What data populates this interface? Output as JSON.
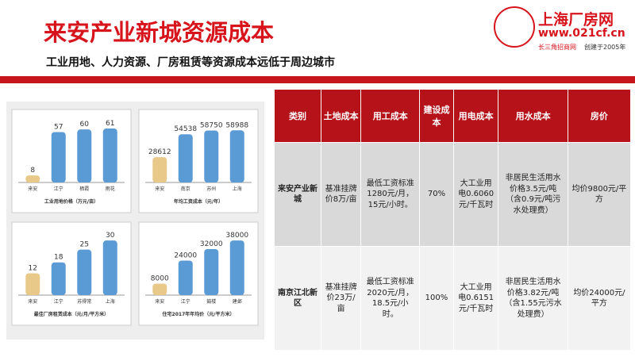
{
  "header": {
    "title": "来安产业新城资源成本",
    "subtitle": "工业用地、人力资源、厂房租赁等资源成本远低于周边城市",
    "logo": {
      "name": "上海厂房网",
      "url": "www.021cf.cn",
      "tagline": "长三角招商网",
      "founded": "创建于2005年"
    }
  },
  "charts": [
    {
      "type": "bar",
      "caption": "工业用地价格（万元/亩）",
      "categories": [
        "来安",
        "江宁",
        "栖霞",
        "雨花"
      ],
      "values": [
        8,
        57,
        60,
        61
      ],
      "ylim": [
        0,
        70
      ],
      "color": "#5b9bd5",
      "highlight_color": "#e8c98a"
    },
    {
      "type": "bar",
      "caption": "年均工资成本（元/年）",
      "categories": [
        "来安",
        "南京",
        "苏州",
        "上海"
      ],
      "values": [
        28612,
        54538,
        58750,
        58988
      ],
      "ylim": [
        0,
        70000
      ],
      "color": "#5b9bd5",
      "highlight_color": "#e8c98a"
    },
    {
      "type": "bar",
      "caption": "最佳厂房租赁成本（元/月/平方米）",
      "categories": [
        "来安",
        "江宁",
        "苏得常",
        "上海"
      ],
      "values": [
        12,
        18,
        25,
        30
      ],
      "ylim": [
        0,
        34
      ],
      "color": "#5b9bd5",
      "highlight_color": "#e8c98a"
    },
    {
      "type": "bar",
      "caption": "住宅2017年年均价（元/平方米）",
      "categories": [
        "来安",
        "江宁",
        "鼓楼",
        "建邺"
      ],
      "values": [
        8000,
        24000,
        32000,
        38000
      ],
      "ylim": [
        0,
        43000
      ],
      "color": "#5b9bd5",
      "highlight_color": "#e8c98a"
    }
  ],
  "table": {
    "header": [
      "类别",
      "土地成本",
      "用工成本",
      "建设成本",
      "用电成本",
      "用水成本",
      "房价"
    ],
    "rows": [
      [
        "来安产业新城",
        "基准挂牌价8万/亩",
        "最低工资标准1280元/月，15元/小时。",
        "70%",
        "大工业用电0.6060元/千瓦时",
        "非居民生活用水价格3.5元/吨（含0.9元/吨污水处理费）",
        "均价9800元/平方"
      ],
      [
        "南京江北新区",
        "基准挂牌价23万/亩",
        "最低工资标准2020元/月，18.5元/小时。",
        "100%",
        "大工业用电0.6151元/千瓦时",
        "非居民生活用水价格3.82元/吨（含1.55元污水处理费）",
        "均价24000元/平方"
      ]
    ]
  }
}
